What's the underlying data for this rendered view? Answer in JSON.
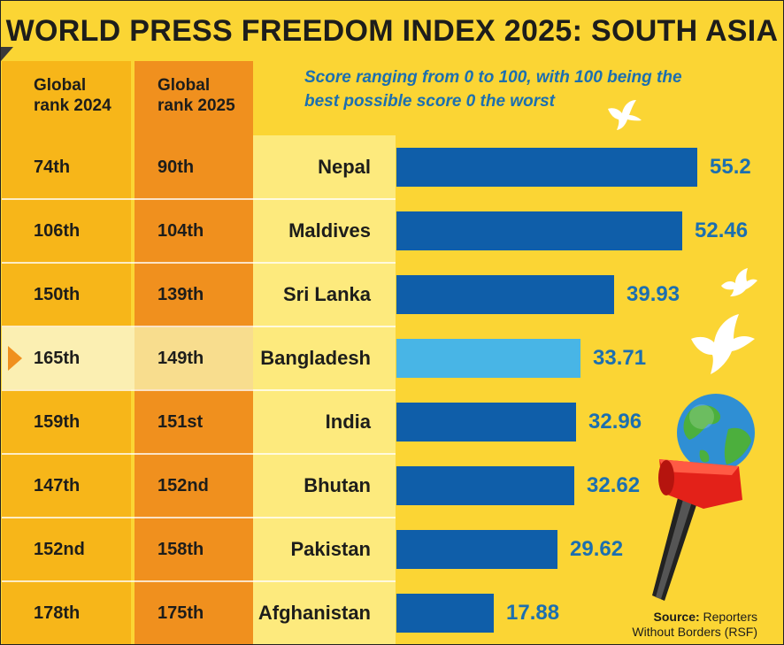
{
  "title": "WORLD PRESS FREEDOM INDEX 2025: SOUTH ASIA",
  "subtitle_line1": "Score ranging from 0 to 100, with 100 being the",
  "subtitle_line2": "best possible score 0 the worst",
  "columns": {
    "rank2024_line1": "Global",
    "rank2024_line2": "rank 2024",
    "rank2025_line1": "Global",
    "rank2025_line2": "rank 2025"
  },
  "colors": {
    "background": "#fbd534",
    "bar": "#0f5ea9",
    "bar_highlight": "#48b5e6",
    "value_text": "#1c6fb0",
    "rank2024_column": "#f7b619",
    "rank2025_column": "#f0901e"
  },
  "highlighted_country": "Bangladesh",
  "chart_data": {
    "type": "bar",
    "orientation": "horizontal",
    "categories": [
      "Nepal",
      "Maldives",
      "Sri Lanka",
      "Bangladesh",
      "India",
      "Bhutan",
      "Pakistan",
      "Afghanistan"
    ],
    "values": [
      55.2,
      52.46,
      39.93,
      33.71,
      32.96,
      32.62,
      29.62,
      17.88
    ],
    "value_labels": [
      "55.2",
      "52.46",
      "39.93",
      "33.71",
      "32.96",
      "32.62",
      "29.62",
      "17.88"
    ],
    "rank_2024": [
      "74th",
      "106th",
      "150th",
      "165th",
      "159th",
      "147th",
      "152nd",
      "178th"
    ],
    "rank_2025": [
      "90th",
      "104th",
      "139th",
      "149th",
      "151st",
      "152nd",
      "158th",
      "175th"
    ],
    "title": "WORLD PRESS FREEDOM INDEX 2025: SOUTH ASIA",
    "xlim": [
      0,
      100
    ],
    "grid": false,
    "legend": "none"
  },
  "source_label": "Source:",
  "source_text": " Reporters",
  "source_text2": "Without Borders (RSF)",
  "icons": [
    "dove-icon",
    "globe-icon",
    "microphone-icon"
  ]
}
